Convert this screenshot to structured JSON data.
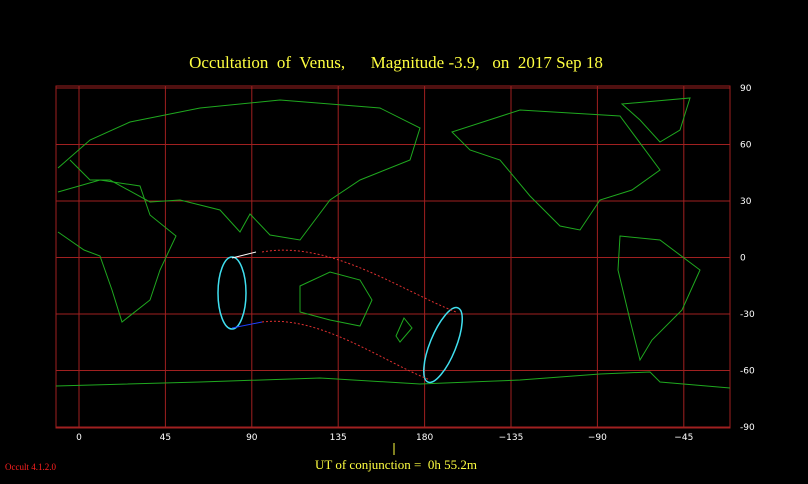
{
  "title": "Occultation  of  Venus,      Magnitude -3.9,   on  2017 Sep 18",
  "longitude_labels": [
    "0",
    "45",
    "90",
    "135",
    "180",
    "−135",
    "−90",
    "−45"
  ],
  "latitude_labels": [
    "90",
    "60",
    "30",
    "0",
    "-30",
    "-60",
    "-90"
  ],
  "conjunction": "UT of conjunction =  0h 55.2m",
  "version": "Occult 4.1.2.0"
}
